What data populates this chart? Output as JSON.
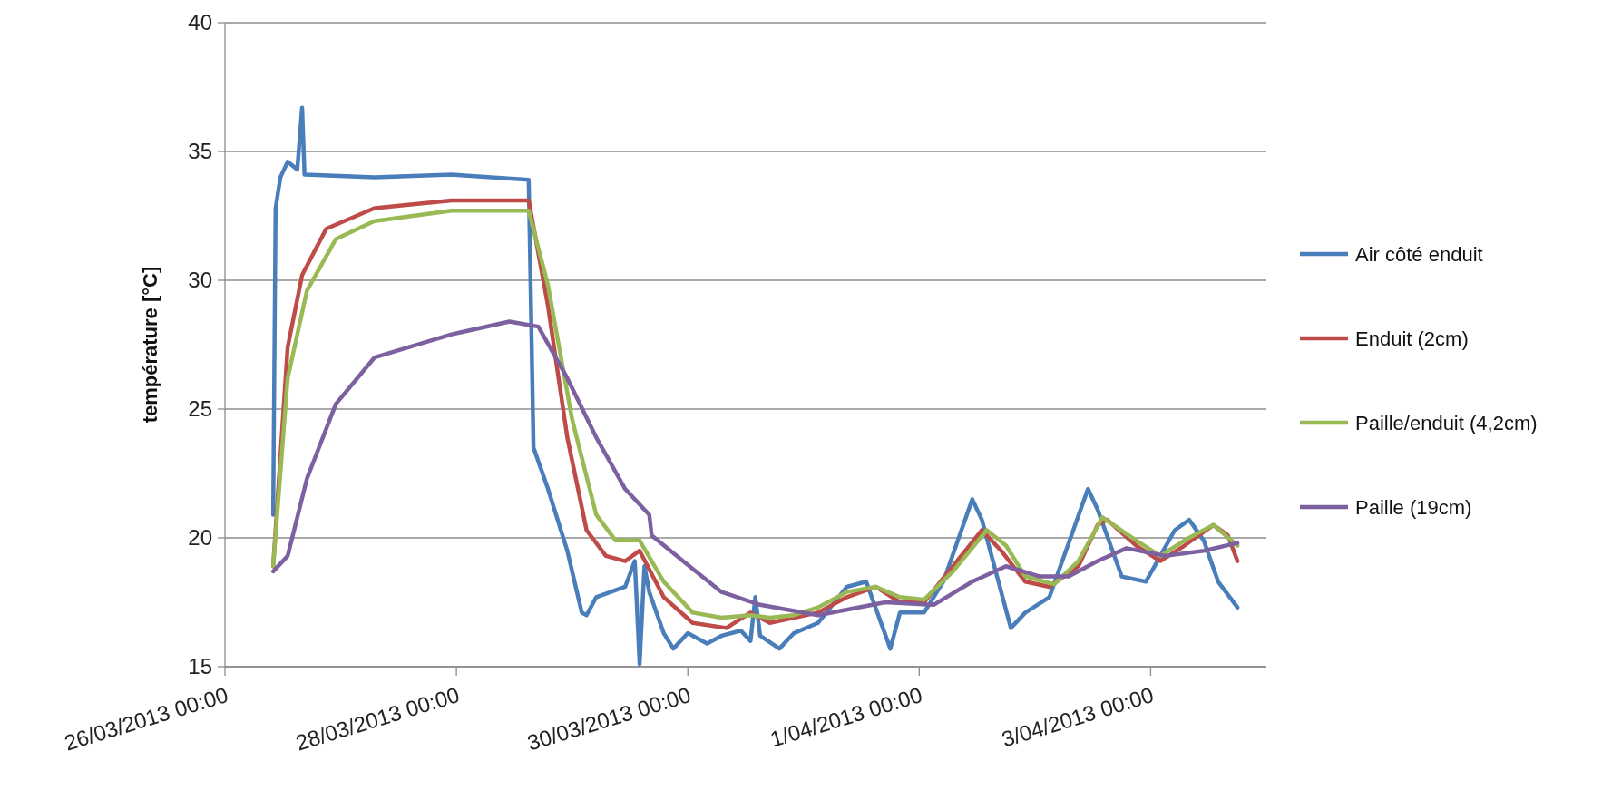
{
  "chart_data": {
    "type": "line",
    "ylabel": "température [°C]",
    "xlim": [
      "2013-03-26",
      "2013-04-04"
    ],
    "xticks": [
      {
        "value": "2013-03-26",
        "label": "26/03/2013 00:00"
      },
      {
        "value": "2013-03-28",
        "label": "28/03/2013 00:00"
      },
      {
        "value": "2013-03-30",
        "label": "30/03/2013 00:00"
      },
      {
        "value": "2013-04-01",
        "label": "1/04/2013 00:00"
      },
      {
        "value": "2013-04-03",
        "label": "3/04/2013 00:00"
      }
    ],
    "ylim": [
      15,
      40
    ],
    "yticks": [
      15,
      20,
      25,
      30,
      35,
      40
    ],
    "grid": "y",
    "legend": "right",
    "series": [
      {
        "name": "Air côté enduit",
        "color": "#4a7ebb",
        "x": [
          "2013-03-26T10:00",
          "2013-03-26T10:30",
          "2013-03-26T11:30",
          "2013-03-26T13:00",
          "2013-03-26T15:00",
          "2013-03-26T16:00",
          "2013-03-26T16:30",
          "2013-03-27T07:00",
          "2013-03-27T23:00",
          "2013-03-28T15:00",
          "2013-03-28T16:00",
          "2013-03-28T19:00",
          "2013-03-28T23:00",
          "2013-03-29T02:00",
          "2013-03-29T03:00",
          "2013-03-29T05:00",
          "2013-03-29T11:00",
          "2013-03-29T13:00",
          "2013-03-29T14:00",
          "2013-03-29T15:00",
          "2013-03-29T16:00",
          "2013-03-29T19:00",
          "2013-03-29T21:00",
          "2013-03-30T00:00",
          "2013-03-30T04:00",
          "2013-03-30T07:00",
          "2013-03-30T11:00",
          "2013-03-30T13:00",
          "2013-03-30T14:00",
          "2013-03-30T15:00",
          "2013-03-30T19:00",
          "2013-03-30T22:00",
          "2013-03-31T03:00",
          "2013-03-31T09:00",
          "2013-03-31T13:00",
          "2013-03-31T18:00",
          "2013-03-31T20:00",
          "2013-04-01T01:00",
          "2013-04-01T05:00",
          "2013-04-01T11:00",
          "2013-04-01T13:00",
          "2013-04-01T19:00",
          "2013-04-01T22:00",
          "2013-04-02T03:00",
          "2013-04-02T11:00",
          "2013-04-02T13:00",
          "2013-04-02T18:00",
          "2013-04-02T23:00",
          "2013-04-03T02:00",
          "2013-04-03T05:00",
          "2013-04-03T08:00",
          "2013-04-03T11:00",
          "2013-04-03T14:00",
          "2013-04-03T18:00"
        ],
        "values": [
          20.9,
          32.8,
          34.0,
          34.6,
          34.3,
          36.7,
          34.1,
          34.0,
          34.1,
          33.9,
          23.5,
          21.9,
          19.5,
          17.1,
          17.0,
          17.7,
          18.1,
          19.1,
          15.1,
          18.9,
          17.9,
          16.3,
          15.7,
          16.3,
          15.9,
          16.2,
          16.4,
          16.0,
          17.7,
          16.2,
          15.7,
          16.3,
          16.7,
          18.1,
          18.3,
          15.7,
          17.1,
          17.1,
          18.3,
          21.5,
          20.7,
          16.5,
          17.1,
          17.7,
          21.9,
          21.1,
          18.5,
          18.3,
          19.3,
          20.3,
          20.7,
          19.9,
          18.3,
          17.3
        ]
      },
      {
        "name": "Enduit (2cm)",
        "color": "#be4b48",
        "x": [
          "2013-03-26T10:00",
          "2013-03-26T13:00",
          "2013-03-26T16:00",
          "2013-03-26T21:00",
          "2013-03-27T07:00",
          "2013-03-27T23:00",
          "2013-03-28T15:00",
          "2013-03-28T19:00",
          "2013-03-28T23:00",
          "2013-03-29T03:00",
          "2013-03-29T07:00",
          "2013-03-29T11:00",
          "2013-03-29T14:00",
          "2013-03-29T19:00",
          "2013-03-30T01:00",
          "2013-03-30T08:00",
          "2013-03-30T13:00",
          "2013-03-30T17:00",
          "2013-03-30T22:00",
          "2013-03-31T03:00",
          "2013-03-31T09:00",
          "2013-03-31T15:00",
          "2013-03-31T20:00",
          "2013-04-01T01:00",
          "2013-04-01T07:00",
          "2013-04-01T13:00",
          "2013-04-01T17:00",
          "2013-04-01T22:00",
          "2013-04-02T03:00",
          "2013-04-02T09:00",
          "2013-04-02T13:00",
          "2013-04-02T15:00",
          "2013-04-02T21:00",
          "2013-04-03T02:00",
          "2013-04-03T07:00",
          "2013-04-03T13:00",
          "2013-04-03T16:00",
          "2013-04-03T18:00"
        ],
        "values": [
          18.9,
          27.4,
          30.2,
          32.0,
          32.8,
          33.1,
          33.1,
          29.0,
          23.9,
          20.3,
          19.3,
          19.1,
          19.5,
          17.7,
          16.7,
          16.5,
          17.1,
          16.7,
          16.9,
          17.1,
          17.7,
          18.1,
          17.5,
          17.5,
          18.9,
          20.3,
          19.5,
          18.3,
          18.1,
          18.9,
          20.5,
          20.7,
          19.7,
          19.1,
          19.7,
          20.5,
          20.1,
          19.1
        ]
      },
      {
        "name": "Paille/enduit (4,2cm)",
        "color": "#98b954",
        "x": [
          "2013-03-26T10:00",
          "2013-03-26T13:00",
          "2013-03-26T17:00",
          "2013-03-26T23:00",
          "2013-03-27T07:00",
          "2013-03-27T23:00",
          "2013-03-28T15:00",
          "2013-03-28T19:00",
          "2013-03-29T00:00",
          "2013-03-29T05:00",
          "2013-03-29T09:00",
          "2013-03-29T14:00",
          "2013-03-29T19:00",
          "2013-03-30T01:00",
          "2013-03-30T07:00",
          "2013-03-30T13:00",
          "2013-03-30T17:00",
          "2013-03-30T22:00",
          "2013-03-31T03:00",
          "2013-03-31T09:00",
          "2013-03-31T15:00",
          "2013-03-31T20:00",
          "2013-04-01T01:00",
          "2013-04-01T07:00",
          "2013-04-01T14:00",
          "2013-04-01T18:00",
          "2013-04-01T22:00",
          "2013-04-02T04:00",
          "2013-04-02T09:00",
          "2013-04-02T14:00",
          "2013-04-02T21:00",
          "2013-04-03T02:00",
          "2013-04-03T07:00",
          "2013-04-03T13:00",
          "2013-04-03T18:00"
        ],
        "values": [
          18.9,
          26.2,
          29.6,
          31.6,
          32.3,
          32.7,
          32.7,
          29.8,
          24.6,
          20.9,
          19.9,
          19.9,
          18.3,
          17.1,
          16.9,
          17.0,
          16.9,
          17.0,
          17.3,
          17.9,
          18.1,
          17.7,
          17.6,
          18.7,
          20.3,
          19.7,
          18.5,
          18.2,
          19.1,
          20.8,
          19.9,
          19.3,
          19.9,
          20.5,
          19.7
        ]
      },
      {
        "name": "Paille (19cm)",
        "color": "#7d60a0",
        "x": [
          "2013-03-26T10:00",
          "2013-03-26T13:00",
          "2013-03-26T17:00",
          "2013-03-26T23:00",
          "2013-03-27T07:00",
          "2013-03-27T23:00",
          "2013-03-28T11:00",
          "2013-03-28T17:00",
          "2013-03-28T23:00",
          "2013-03-29T05:00",
          "2013-03-29T11:00",
          "2013-03-29T16:00",
          "2013-03-29T16:30",
          "2013-03-29T23:00",
          "2013-03-30T07:00",
          "2013-03-30T15:00",
          "2013-03-31T03:00",
          "2013-03-31T17:00",
          "2013-04-01T03:00",
          "2013-04-01T11:00",
          "2013-04-01T18:00",
          "2013-04-02T01:00",
          "2013-04-02T07:00",
          "2013-04-02T13:00",
          "2013-04-02T19:00",
          "2013-04-03T03:00",
          "2013-04-03T11:00",
          "2013-04-03T18:00"
        ],
        "values": [
          18.7,
          19.3,
          22.3,
          25.2,
          27.0,
          27.9,
          28.4,
          28.2,
          26.2,
          23.9,
          21.9,
          20.9,
          20.1,
          19.1,
          17.9,
          17.4,
          17.0,
          17.5,
          17.4,
          18.3,
          18.9,
          18.5,
          18.5,
          19.1,
          19.6,
          19.3,
          19.5,
          19.8
        ]
      }
    ]
  }
}
